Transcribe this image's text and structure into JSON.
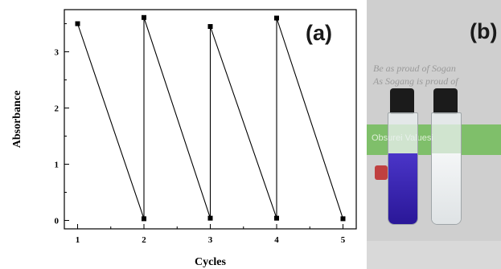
{
  "chart_data": {
    "type": "line",
    "xlabel": "Cycles",
    "ylabel": "Absorbance",
    "xlim": [
      0.8,
      5.2
    ],
    "ylim": [
      -0.15,
      3.75
    ],
    "xticks": [
      1,
      2,
      3,
      4,
      5
    ],
    "yticks": [
      0,
      1,
      2,
      3
    ],
    "grid": false,
    "marker": "square",
    "series": [
      {
        "points": [
          [
            1,
            3.5
          ],
          [
            2,
            0.03
          ],
          [
            2,
            3.61
          ],
          [
            3,
            0.04
          ],
          [
            3,
            3.45
          ],
          [
            4,
            0.04
          ],
          [
            4,
            3.6
          ],
          [
            5,
            0.03
          ]
        ]
      }
    ]
  },
  "panels": {
    "a_label": "(a)",
    "b_label": "(b)"
  },
  "photo": {
    "background_text_line1": "Be as proud of Sogan",
    "background_text_line2": "As Sogang is proud of",
    "band_text": "Obsurei Valuesi",
    "colors": {
      "blue_solution": "#3a22b8",
      "clear_solution": "#e8eaec",
      "green_band": "#7fbf6a"
    }
  }
}
